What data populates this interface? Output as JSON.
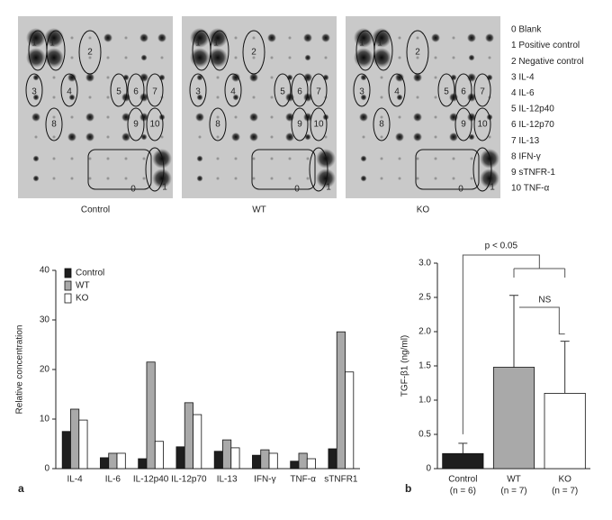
{
  "blots": {
    "panels": [
      "Control",
      "WT",
      "KO"
    ],
    "markers": [
      "0",
      "1",
      "2",
      "3",
      "4",
      "5",
      "6",
      "7",
      "8",
      "9",
      "10"
    ],
    "key": [
      "0 Blank",
      "1 Positive control",
      "2 Negative control",
      "3 IL-4",
      "4 IL-6",
      "5 IL-12p40",
      "6 IL-12p70",
      "7 IL-13",
      "8 IFN-γ",
      "9 sTNFR-1",
      "10 TNF-α"
    ]
  },
  "chart_data": [
    {
      "type": "bar",
      "panel": "a",
      "y_label": "Relative concentration",
      "categories": [
        "IL-4",
        "IL-6",
        "IL-12p40",
        "IL-12p70",
        "IL-13",
        "IFN-γ",
        "TNF-α",
        "sTNFR1"
      ],
      "series": [
        {
          "name": "Control",
          "color": "#1e1e1e",
          "values": [
            7.5,
            2.2,
            2.0,
            4.4,
            3.5,
            2.7,
            1.5,
            4.0
          ]
        },
        {
          "name": "WT",
          "color": "#a9a9a9",
          "values": [
            12.0,
            3.1,
            21.5,
            13.3,
            5.8,
            3.8,
            3.1,
            27.6
          ]
        },
        {
          "name": "KO",
          "color": "#ffffff",
          "values": [
            9.8,
            3.1,
            5.5,
            10.9,
            4.2,
            3.1,
            2.0,
            19.5
          ]
        }
      ],
      "ylim": [
        0,
        40
      ],
      "yticks": [
        0,
        10,
        20,
        30,
        40
      ],
      "legend": "upper left"
    },
    {
      "type": "bar",
      "panel": "b",
      "y_label": "TGF-β1 (ng/ml)",
      "categories": [
        "Control",
        "WT",
        "KO"
      ],
      "category_notes": [
        "(n = 6)",
        "(n = 7)",
        "(n = 7)"
      ],
      "values": [
        0.22,
        1.48,
        1.1
      ],
      "errors": [
        0.15,
        1.05,
        0.76
      ],
      "colors": [
        "#1e1e1e",
        "#a9a9a9",
        "#ffffff"
      ],
      "ylim": [
        0,
        3
      ],
      "yticks": [
        0,
        0.5,
        {
          "value": 1,
          "label": "1.0"
        },
        1.5,
        {
          "value": 2,
          "label": "2.0"
        },
        2.5,
        {
          "value": 3,
          "label": "3.0"
        }
      ],
      "annotations": [
        "p < 0.05",
        "NS"
      ]
    }
  ]
}
